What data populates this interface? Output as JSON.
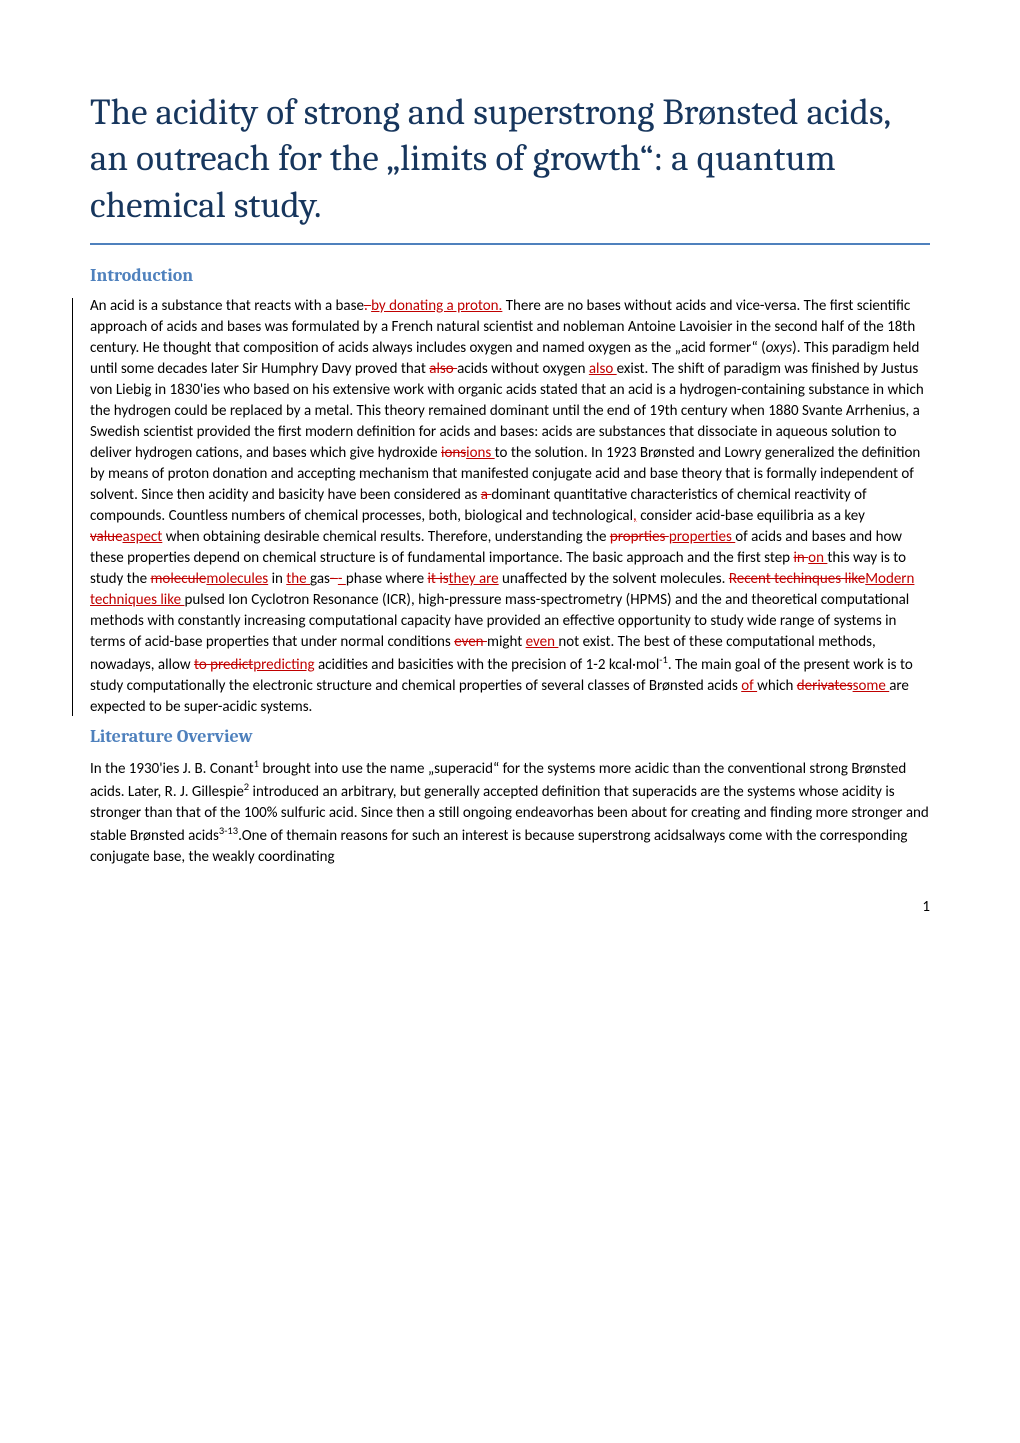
{
  "title": "The acidity of strong and superstrong Brønsted acids, an outreach for the „limits of growth“: a quantum chemical study.",
  "sections": {
    "intro_heading": "Introduction",
    "lit_heading": "Literature Overview"
  },
  "intro": {
    "p1a": "An acid is a substance that reacts with a base",
    "p1_strike1": ". ",
    "p1_insert1": " by donating a proton.",
    "p1b": " There are no bases without acids and vice-versa. The first scientific approach of acids and bases was formulated by a French natural scientist and nobleman Antoine Lavoisier in the second half of the 18th century. He thought that composition of acids always includes oxygen and named oxygen as the „acid former“ (",
    "p1_oxys": "oxys",
    "p1c": "). This paradigm held until some decades later Sir Humphry Davy proved that ",
    "p1_strike2": "also ",
    "p1d": "acids without oxygen ",
    "p1_insert2": "also ",
    "p1e": "exist. The shift of paradigm was finished by Justus von Liebig in 1830'ies who based on his extensive work with organic acids stated that an acid is a hydrogen-containing substance in which the hydrogen could be replaced by a metal. This theory remained dominant until the end of 19th century when 1880 Svante Arrhenius, a Swedish scientist provided the first modern definition for acids and bases: acids are substances that dissociate in aqueous solution to deliver hydrogen cations, and bases which give hydroxide ",
    "p1_strike3": "ions",
    "p1_insert3": "ions ",
    "p1f": "to the solution. In 1923 Brønsted and Lowry generalized the definition by means of proton donation and accepting mechanism that manifested conjugate acid and base theory that is formally independent of solvent. Since then acidity and basicity have been considered as ",
    "p1_strike4": "a ",
    "p1g": "dominant quantitative characteristics of chemical reactivity of compounds. Countless numbers of chemical processes, both, biological and technological",
    "p1_insert4": ",",
    "p1h": " consider acid-base equilibria as a key ",
    "p1_strike5": "value",
    "p1_insert5": "aspect",
    "p1i": " when obtaining desirable chemical results. Therefore, understanding the ",
    "p1_strike6": "proprties ",
    "p1_insert6": "properties ",
    "p1j": "of acids and bases and how these properties depend on chemical structure is of fundamental importance. The basic approach and the first step ",
    "p1_strike7": "in ",
    "p1_insert7": "on ",
    "p1k": "this way is to study the ",
    "p1_strike8": "molecule",
    "p1_insert8": "molecules",
    "p1l": " in ",
    "p1_insert9": "the ",
    "p1m": "gas",
    "p1_strike9": "- ",
    "p1_insert10": "- ",
    "p1n": "phase where ",
    "p1_strike10": "it is",
    "p1_insert11": "they are",
    "p1o": " unaffected by the solvent molecules. ",
    "p1_strike11": "Recent techinques like",
    "p1_insert12": "Modern techniques like ",
    "p1p": "pulsed Ion Cyclotron Resonance (ICR), high-pressure mass-spectrometry (HPMS) and the and theoretical computational methods with constantly increasing computational capacity have provided an effective opportunity to study wide range of systems in terms of acid-base properties that under normal conditions ",
    "p1_strike12": "even ",
    "p1q": "might ",
    "p1_insert13": "even ",
    "p1r": "not exist. The best of these computational methods, nowadays, allow ",
    "p1_strike13": "to predict",
    "p1_insert14": "predicting",
    "p1s": " acidities and basicities with the precision of 1-2 kcal·mol",
    "p1_sup": "-1",
    "p1t": ". The main goal of the present work is to study computationally the electronic structure and chemical properties of several classes of Brønsted acids ",
    "p1_insert15": "of ",
    "p1u": "which ",
    "p1_strike14": "derivates",
    "p1_insert16": "some ",
    "p1v": "are expected to be super-acidic systems."
  },
  "lit": {
    "p1a": "In the 1930'ies J. B. Conant",
    "p1_sup1": "1",
    "p1b": " brought into use the name „superacid“ for the systems more acidic than the conventional strong Brønsted acids. Later, R. J. Gillespie",
    "p1_sup2": "2",
    "p1c": " introduced an arbitrary, but generally accepted definition that superacids are the systems whose acidity is stronger than that of the 100% sulfuric acid. Since then a still ongoing endeavorhas been about for creating and finding more stronger and stable Brønsted acids",
    "p1_sup3": "3-13",
    "p1d": ".One of themain reasons for such an interest is because superstrong acidsalways come with the corresponding conjugate base, the weakly coordinating"
  },
  "page_number": "1"
}
